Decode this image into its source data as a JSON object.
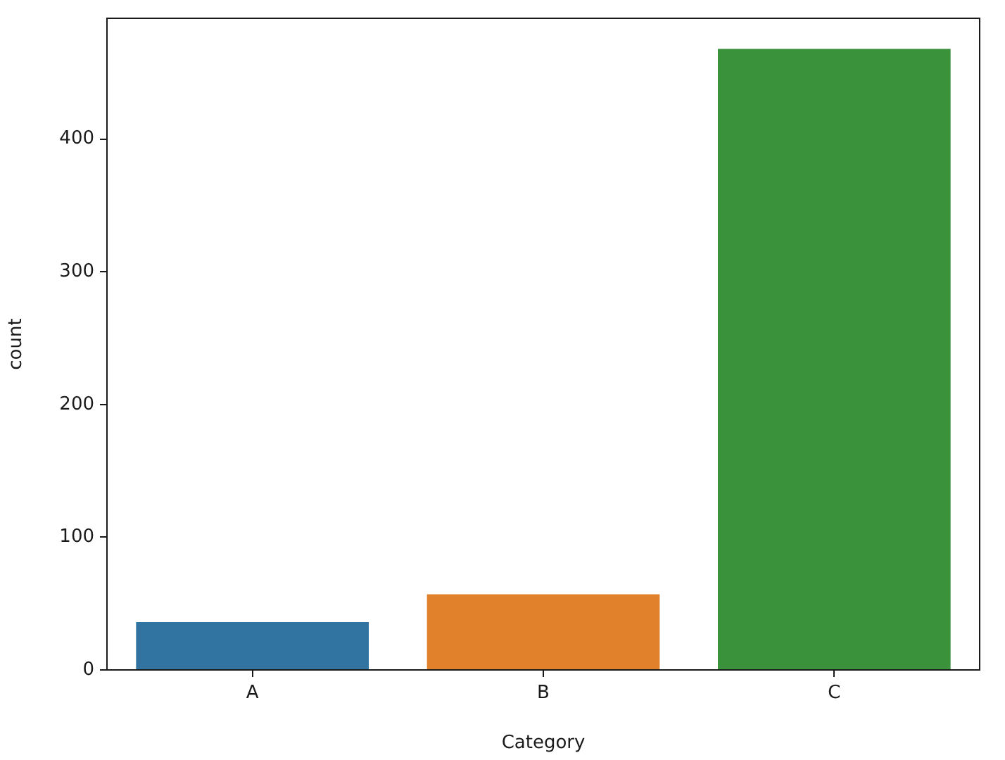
{
  "chart_data": {
    "type": "bar",
    "categories": [
      "A",
      "B",
      "C"
    ],
    "values": [
      36,
      57,
      468
    ],
    "colors": [
      "#3274a1",
      "#e1812c",
      "#3a923a"
    ],
    "xlabel": "Category",
    "ylabel": "count",
    "ylim": [
      0,
      491
    ],
    "yticks": [
      0,
      100,
      200,
      300,
      400
    ]
  }
}
